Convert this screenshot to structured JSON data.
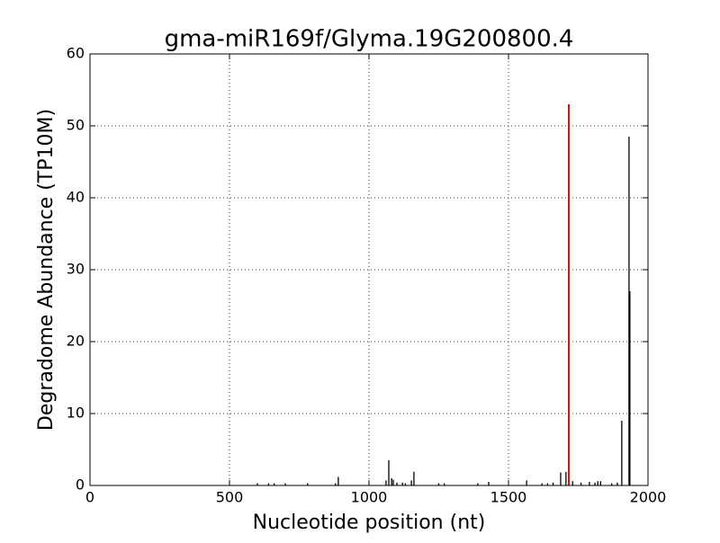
{
  "chart_data": {
    "type": "stem",
    "title": "gma-miR169f/Glyma.19G200800.4",
    "x_label": "Nucleotide position (nt)",
    "y_label": "Degradome Abundance (TP10M)",
    "xlim": [
      0,
      2000
    ],
    "ylim": [
      0,
      60
    ],
    "xticks": [
      0,
      500,
      1000,
      1500,
      2000
    ],
    "yticks": [
      0,
      10,
      20,
      30,
      40,
      50,
      60
    ],
    "grid": true,
    "series": [
      {
        "color": "#000000",
        "x": [
          600,
          640,
          660,
          700,
          780,
          880,
          890,
          1061,
          1071,
          1081,
          1087,
          1100,
          1120,
          1130,
          1152,
          1161,
          1250,
          1270,
          1390,
          1429,
          1565,
          1620,
          1640,
          1660,
          1687,
          1706,
          1730,
          1760,
          1790,
          1810,
          1820,
          1830,
          1870,
          1890,
          1906,
          1932,
          1935
        ],
        "values": [
          0.3,
          0.3,
          0.3,
          0.3,
          0.3,
          0.3,
          1.2,
          0.7,
          3.5,
          1.0,
          0.8,
          0.4,
          0.4,
          0.3,
          0.7,
          1.9,
          0.3,
          0.3,
          0.3,
          0.5,
          0.7,
          0.3,
          0.3,
          0.4,
          1.8,
          1.9,
          0.6,
          0.4,
          0.5,
          0.4,
          0.6,
          0.6,
          0.3,
          0.4,
          9.0,
          48.5,
          27.0
        ]
      },
      {
        "color": "#ff0000",
        "x": [
          1716
        ],
        "values": [
          53.0
        ]
      }
    ]
  }
}
